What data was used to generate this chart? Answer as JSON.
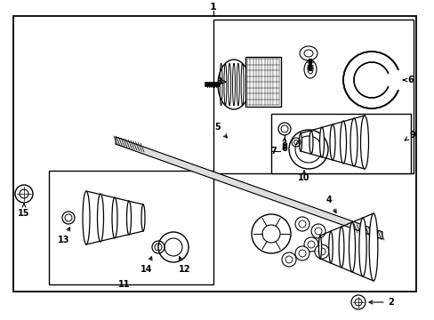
{
  "bg_color": "#ffffff",
  "line_color": "#000000",
  "fig_width": 4.89,
  "fig_height": 3.6
}
